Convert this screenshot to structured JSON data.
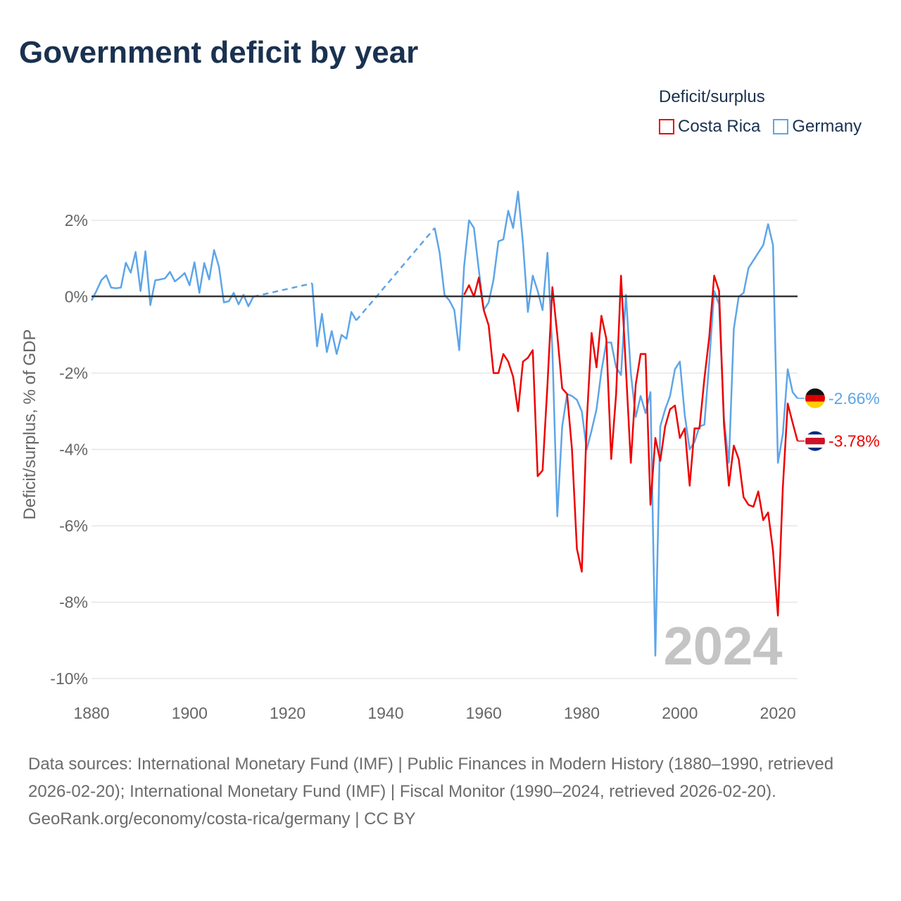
{
  "title": "Government deficit by year",
  "legend": {
    "title": "Deficit/surplus",
    "items": [
      {
        "label": "Costa Rica",
        "color": "#ee0000"
      },
      {
        "label": "Germany",
        "color": "#5da5e8"
      }
    ]
  },
  "footer": {
    "sources": "Data sources: International Monetary Fund (IMF) | Public Finances in Modern History (1880–1990, retrieved 2026-02-20); International Monetary Fund (IMF) | Fiscal Monitor (1990–2024, retrieved 2026-02-20).",
    "credit": "GeoRank.org/economy/costa-rica/germany | CC BY"
  },
  "chart_data": {
    "type": "line",
    "title": "Government deficit by year",
    "xlabel": "",
    "ylabel": "Deficit/surplus, % of GDP",
    "xlim": [
      1880,
      2024
    ],
    "ylim": [
      -10,
      2
    ],
    "x_ticks": [
      "1880",
      "1900",
      "1920",
      "1940",
      "1960",
      "1980",
      "2000",
      "2020"
    ],
    "x_tick_values": [
      1880,
      1900,
      1920,
      1940,
      1960,
      1980,
      2000,
      2020
    ],
    "y_ticks": [
      "2%",
      "0%",
      "-2%",
      "-4%",
      "-6%",
      "-8%",
      "-10%"
    ],
    "y_tick_values": [
      2,
      0,
      -2,
      -4,
      -6,
      -8,
      -10
    ],
    "grid": true,
    "legend_position": "top-right",
    "watermark_year": "2024",
    "series": [
      {
        "name": "Germany",
        "color": "#5da5e8",
        "end_label": "-2.66%",
        "start_year": 1880,
        "values": [
          -0.1,
          0.15,
          0.43,
          0.56,
          0.24,
          0.22,
          0.24,
          0.89,
          0.63,
          1.17,
          0.15,
          1.19,
          -0.22,
          0.43,
          0.45,
          0.48,
          0.65,
          0.4,
          0.5,
          0.62,
          0.3,
          0.9,
          0.1,
          0.88,
          0.45,
          1.22,
          0.78,
          -0.15,
          -0.12,
          0.1,
          -0.2,
          0.05,
          -0.25,
          0.0,
          null,
          null,
          null,
          null,
          null,
          null,
          null,
          null,
          null,
          null,
          null,
          0.35,
          -1.3,
          -0.45,
          -1.45,
          -0.9,
          -1.5,
          -1.0,
          -1.1,
          -0.4,
          -0.62,
          null,
          null,
          null,
          null,
          null,
          null,
          null,
          null,
          null,
          null,
          null,
          null,
          null,
          null,
          null,
          1.8,
          1.15,
          0.05,
          -0.1,
          -0.35,
          -1.4,
          0.8,
          2.0,
          1.8,
          0.7,
          -0.35,
          -0.15,
          0.45,
          1.45,
          1.5,
          2.25,
          1.8,
          2.75,
          1.4,
          -0.4,
          0.55,
          0.15,
          -0.35,
          1.15,
          -1.4,
          -5.75,
          -3.4,
          -2.55,
          -2.6,
          -2.7,
          -3.0,
          -4.0,
          -3.5,
          -2.95,
          -1.95,
          -1.2,
          -1.2,
          -1.85,
          -2.05,
          0.05,
          -2.0,
          -3.15,
          -2.6,
          -3.05,
          -2.5,
          -9.4,
          -3.4,
          -2.95,
          -2.6,
          -1.9,
          -1.7,
          -3.1,
          -4.0,
          -3.8,
          -3.4,
          -3.35,
          -1.7,
          0.15,
          -0.2,
          -3.2,
          -4.35,
          -0.85,
          0.0,
          0.1,
          0.75,
          0.95,
          1.15,
          1.35,
          1.9,
          1.35,
          -4.35,
          -3.6,
          -1.9,
          -2.5,
          -2.66
        ]
      },
      {
        "name": "Costa Rica",
        "color": "#ee0000",
        "end_label": "-3.78%",
        "start_year": 1956,
        "values": [
          0.05,
          0.3,
          0.0,
          0.5,
          -0.35,
          -0.75,
          -2.0,
          -2.0,
          -1.5,
          -1.7,
          -2.1,
          -3.0,
          -1.7,
          -1.6,
          -1.4,
          -4.7,
          -4.55,
          -2.3,
          0.25,
          -1.0,
          -2.4,
          -2.55,
          -4.0,
          -6.6,
          -7.2,
          -3.3,
          -0.95,
          -1.85,
          -0.5,
          -1.1,
          -4.25,
          -2.55,
          0.55,
          -1.9,
          -4.35,
          -2.3,
          -1.5,
          -1.5,
          -5.45,
          -3.7,
          -4.3,
          -3.4,
          -2.95,
          -2.85,
          -3.7,
          -3.45,
          -4.95,
          -3.45,
          -3.45,
          -2.15,
          -1.05,
          0.55,
          0.15,
          -3.35,
          -4.95,
          -3.9,
          -4.25,
          -5.25,
          -5.45,
          -5.5,
          -5.1,
          -5.85,
          -5.65,
          -6.65,
          -8.35,
          -5.0,
          -2.8,
          -3.3,
          -3.78
        ]
      }
    ]
  }
}
